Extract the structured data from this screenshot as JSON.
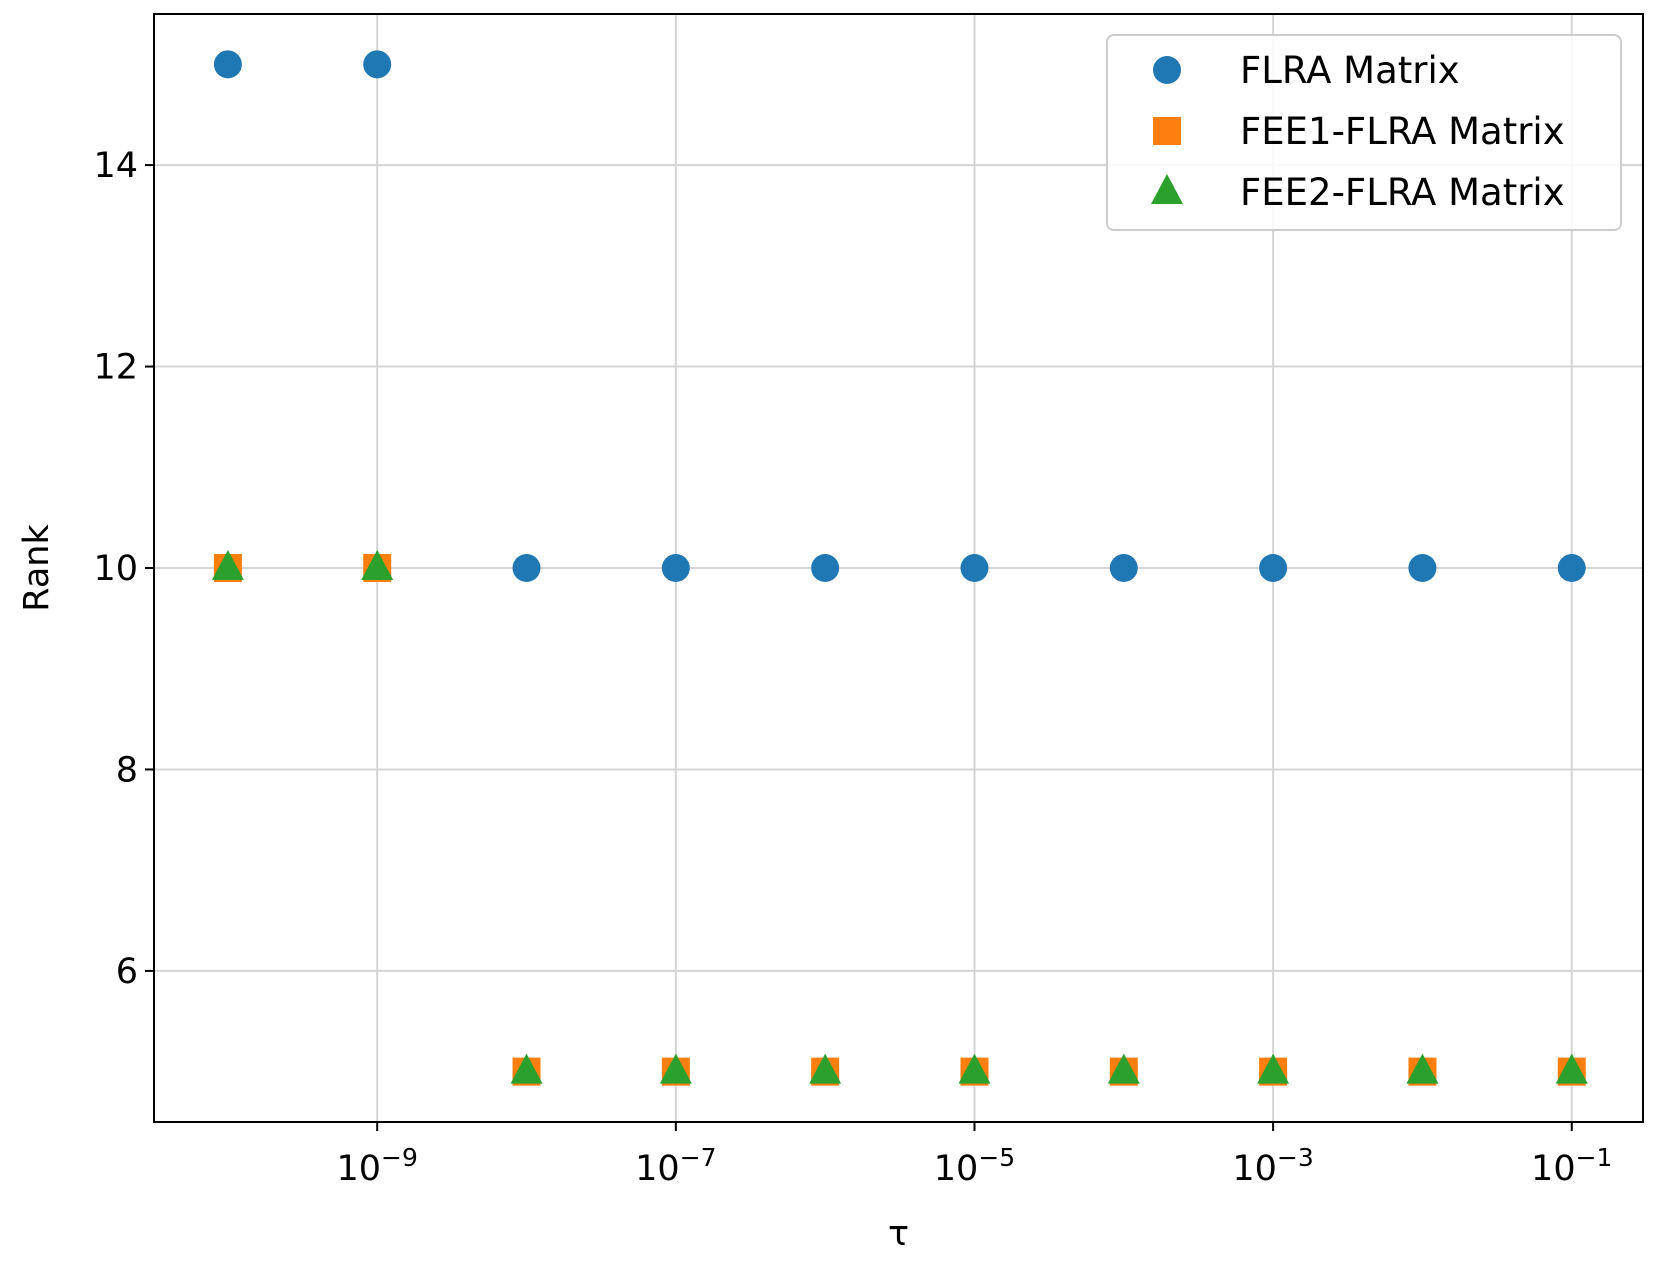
{
  "chart_data": {
    "type": "scatter",
    "x_scale": "log",
    "xlabel": "τ",
    "ylabel": "Rank",
    "xlim": [
      3.2e-11,
      0.3
    ],
    "ylim": [
      4.5,
      15.5
    ],
    "grid": true,
    "legend_position": "top-right",
    "x_ticks": [
      {
        "value": 1e-09,
        "base": "10",
        "exp": "−9"
      },
      {
        "value": 1e-07,
        "base": "10",
        "exp": "−7"
      },
      {
        "value": 1e-05,
        "base": "10",
        "exp": "−5"
      },
      {
        "value": 0.001,
        "base": "10",
        "exp": "−3"
      },
      {
        "value": 0.1,
        "base": "10",
        "exp": "−1"
      }
    ],
    "y_ticks": [
      6,
      8,
      10,
      12,
      14
    ],
    "x": [
      1e-10,
      1e-09,
      1e-08,
      1e-07,
      1e-06,
      1e-05,
      0.0001,
      0.001,
      0.01,
      0.1
    ],
    "series": [
      {
        "name": "FLRA Matrix",
        "marker": "circle",
        "color": "#1f77b4",
        "values": [
          15,
          15,
          10,
          10,
          10,
          10,
          10,
          10,
          10,
          10
        ]
      },
      {
        "name": "FEE1-FLRA Matrix",
        "marker": "square",
        "color": "#ff7f0e",
        "values": [
          10,
          10,
          5,
          5,
          5,
          5,
          5,
          5,
          5,
          5
        ]
      },
      {
        "name": "FEE2-FLRA Matrix",
        "marker": "triangle",
        "color": "#2ca02c",
        "values": [
          10,
          10,
          5,
          5,
          5,
          5,
          5,
          5,
          5,
          5
        ]
      }
    ]
  }
}
